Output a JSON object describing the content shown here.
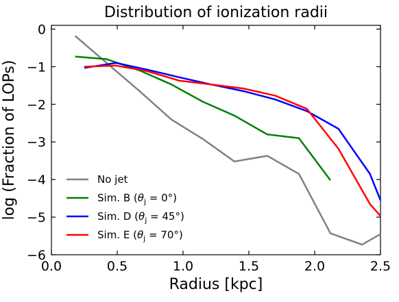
{
  "chart_data": {
    "type": "line",
    "title": "Distribution of ionization radii",
    "xlabel": "Radius [kpc]",
    "ylabel": "log (Fraction of LOPs)",
    "xlim": [
      0.0,
      2.5
    ],
    "ylim": [
      -6,
      0.1
    ],
    "xticks": [
      "0.0",
      "0.5",
      "1.0",
      "1.5",
      "2.0",
      "2.5"
    ],
    "xtick_values": [
      0.0,
      0.5,
      1.0,
      1.5,
      2.0,
      2.5
    ],
    "yticks": [
      "0",
      "−1",
      "−2",
      "−3",
      "−4",
      "−5",
      "−6"
    ],
    "ytick_values": [
      0,
      -1,
      -2,
      -3,
      -4,
      -5,
      -6
    ],
    "grid": false,
    "legend_position": "lower-left",
    "series": [
      {
        "name": "No jet",
        "color": "#808080",
        "x": [
          0.18,
          0.42,
          0.67,
          0.91,
          1.15,
          1.39,
          1.64,
          1.88,
          2.12,
          2.36,
          2.5
        ],
        "y": [
          -0.18,
          -0.9,
          -1.65,
          -2.4,
          -2.92,
          -3.52,
          -3.37,
          -3.85,
          -5.43,
          -5.73,
          -5.45
        ]
      },
      {
        "name": "Sim. B (θ_j = 0°)",
        "label_main": "Sim. B (",
        "label_sym": "θ",
        "label_sub": "j",
        "label_val": " = 0°)",
        "color": "#008000",
        "x": [
          0.18,
          0.42,
          0.67,
          0.91,
          1.15,
          1.39,
          1.64,
          1.88,
          2.12
        ],
        "y": [
          -0.73,
          -0.8,
          -1.1,
          -1.47,
          -1.93,
          -2.3,
          -2.8,
          -2.9,
          -4.02
        ]
      },
      {
        "name": "Sim. D (θ_j = 45°)",
        "label_main": "Sim. D (",
        "label_sym": "θ",
        "label_sub": "j",
        "label_val": " = 45°)",
        "color": "#0000ff",
        "x": [
          0.25,
          0.49,
          0.73,
          0.97,
          1.21,
          1.46,
          1.7,
          1.94,
          2.18,
          2.42,
          2.5
        ],
        "y": [
          -1.03,
          -0.9,
          -1.08,
          -1.28,
          -1.47,
          -1.65,
          -1.87,
          -2.18,
          -2.65,
          -3.85,
          -4.55
        ]
      },
      {
        "name": "Sim. E (θ_j = 70°)",
        "label_main": "Sim. E (",
        "label_sym": "θ",
        "label_sub": "j",
        "label_val": " = 70°)",
        "color": "#ff0000",
        "x": [
          0.25,
          0.49,
          0.73,
          0.97,
          1.21,
          1.46,
          1.7,
          1.94,
          2.18,
          2.42,
          2.5
        ],
        "y": [
          -1.0,
          -0.97,
          -1.12,
          -1.37,
          -1.47,
          -1.58,
          -1.77,
          -2.12,
          -3.18,
          -4.65,
          -4.97
        ]
      }
    ]
  }
}
